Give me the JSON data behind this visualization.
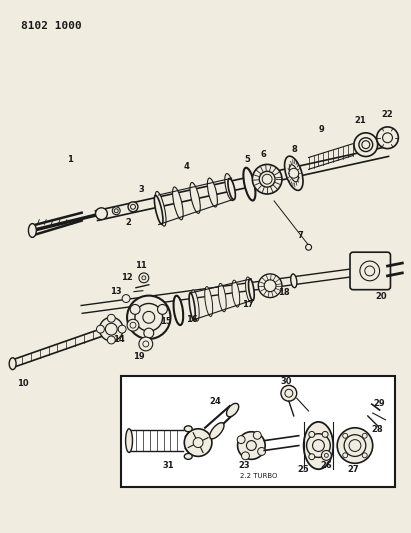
{
  "title": "8102 1000",
  "bg": "#f0ece0",
  "fg": "#1a1a1a",
  "white": "#f0ece0",
  "box_bg": "#ffffff",
  "figsize": [
    4.11,
    5.33
  ],
  "dpi": 100,
  "subtitle": "2.2 TURBO"
}
